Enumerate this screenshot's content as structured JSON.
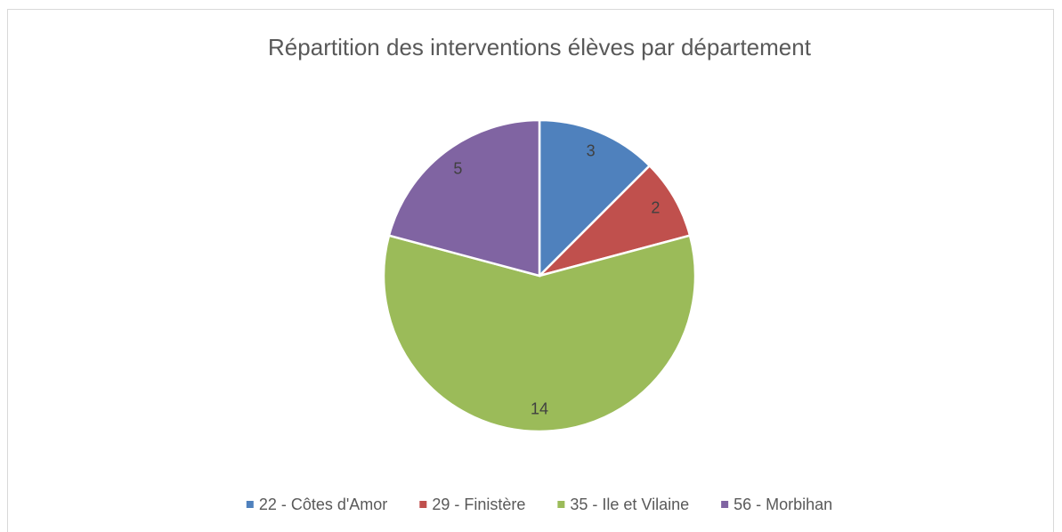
{
  "chart_data": {
    "type": "pie",
    "title": "Répartition des interventions élèves par département",
    "categories": [
      "22 - Côtes d'Amor",
      "29 - Finistère",
      "35 - Ile et Vilaine",
      "56 - Morbihan"
    ],
    "values": [
      3,
      2,
      14,
      5
    ],
    "colors": [
      "#4f81bd",
      "#c0504d",
      "#9bbb59",
      "#8064a2"
    ],
    "legend": "bottom"
  }
}
